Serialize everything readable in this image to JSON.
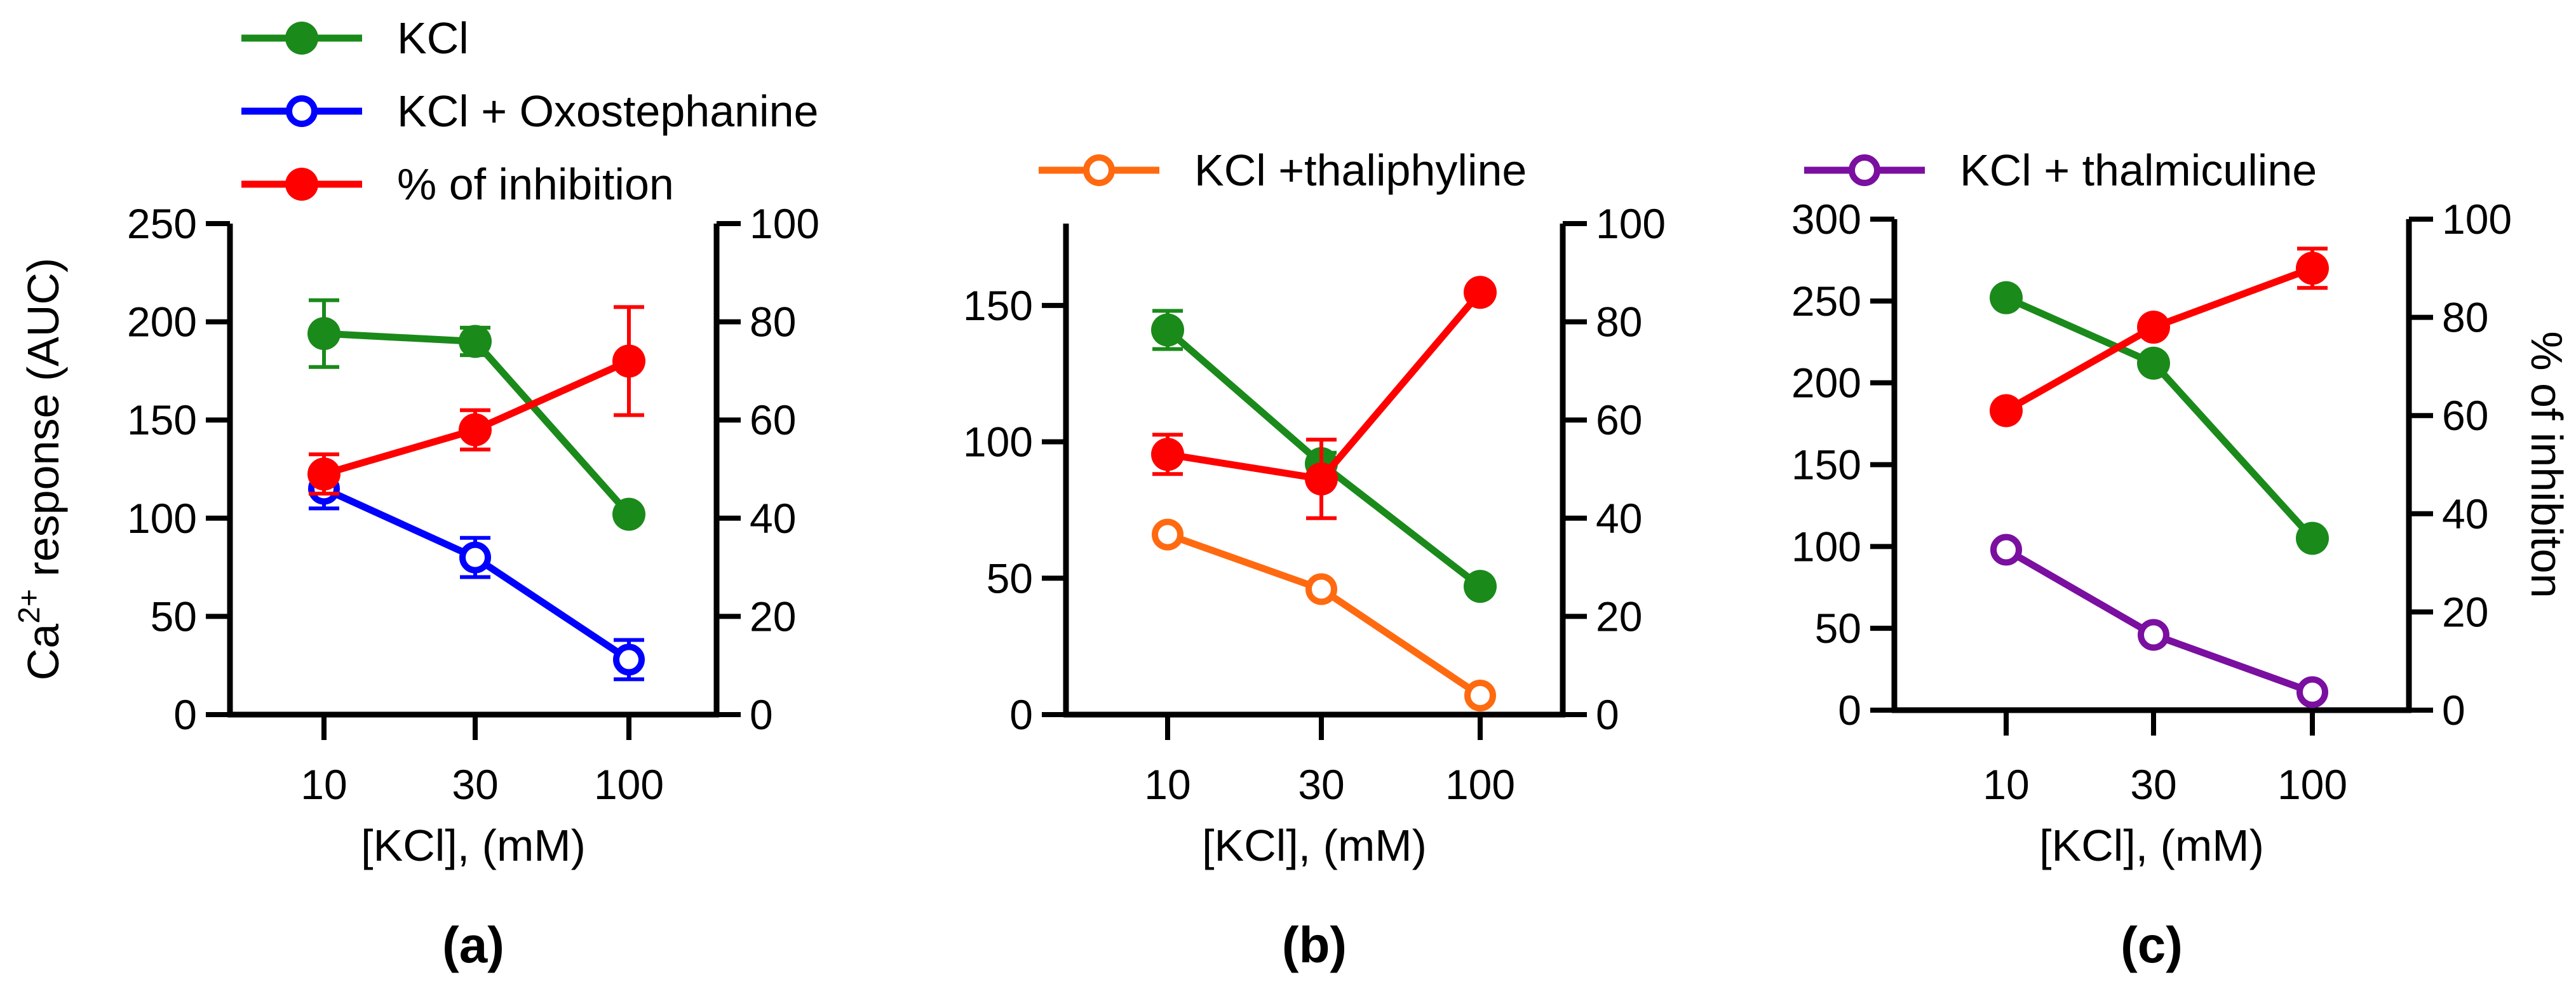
{
  "colors": {
    "green": "#1a8a1a",
    "blue": "#0000ff",
    "red": "#ff0000",
    "orange": "#ff6a10",
    "purple": "#7a0fa0"
  },
  "chart_data": [
    {
      "type": "line",
      "panel_label": "(a)",
      "categories": [
        "10",
        "30",
        "100"
      ],
      "xlabel": "[KCl], (mM)",
      "ylabel": {
        "base": "Ca",
        "sup": "2+",
        "rest": " response (AUC)"
      },
      "ylim": [
        0,
        250
      ],
      "yticks": [
        0,
        50,
        100,
        150,
        200,
        250
      ],
      "y2label": "",
      "y2lim": [
        0,
        100
      ],
      "y2ticks": [
        0,
        20,
        40,
        60,
        80,
        100
      ],
      "legend": [
        {
          "label": "KCl",
          "color": "green",
          "marker": "filled"
        },
        {
          "label": "KCl + Oxostephanine",
          "color": "blue",
          "marker": "open"
        },
        {
          "label": "% of inhibition",
          "color": "red",
          "marker": "filled"
        }
      ],
      "series": [
        {
          "name": "KCl",
          "axis": "left",
          "color": "green",
          "marker": "filled",
          "values": [
            194,
            190,
            102
          ],
          "errors": [
            17,
            7,
            0
          ]
        },
        {
          "name": "KCl + Oxostephanine",
          "axis": "left",
          "color": "blue",
          "marker": "open",
          "values": [
            115,
            80,
            28
          ],
          "errors": [
            10,
            10,
            10
          ]
        },
        {
          "name": "% of inhibition",
          "axis": "right",
          "color": "red",
          "marker": "filled",
          "values": [
            49,
            58,
            72
          ],
          "errors": [
            4,
            4,
            11
          ]
        }
      ]
    },
    {
      "type": "line",
      "panel_label": "(b)",
      "categories": [
        "10",
        "30",
        "100"
      ],
      "xlabel": "[KCl], (mM)",
      "ylabel": "",
      "ylim": [
        0,
        180
      ],
      "yticks": [
        0,
        50,
        100,
        150
      ],
      "y2label": "",
      "y2lim": [
        0,
        100
      ],
      "y2ticks": [
        0,
        20,
        40,
        60,
        80,
        100
      ],
      "legend": [
        {
          "label": "KCl +thaliphyline",
          "color": "orange",
          "marker": "open"
        }
      ],
      "series": [
        {
          "name": "KCl",
          "axis": "left",
          "color": "green",
          "marker": "filled",
          "values": [
            141,
            92,
            47
          ],
          "errors": [
            7,
            4,
            0
          ]
        },
        {
          "name": "KCl +thaliphyline",
          "axis": "left",
          "color": "orange",
          "marker": "open",
          "values": [
            66,
            46,
            7
          ],
          "errors": [
            0,
            0,
            0
          ]
        },
        {
          "name": "% of inhibition",
          "axis": "right",
          "color": "red",
          "marker": "filled",
          "values": [
            53,
            48,
            86
          ],
          "errors": [
            4,
            8,
            0
          ]
        }
      ]
    },
    {
      "type": "line",
      "panel_label": "(c)",
      "categories": [
        "10",
        "30",
        "100"
      ],
      "xlabel": "[KCl], (mM)",
      "ylabel": "",
      "ylim": [
        0,
        300
      ],
      "yticks": [
        0,
        50,
        100,
        150,
        200,
        250,
        300
      ],
      "y2label": "% of inhibiton",
      "y2lim": [
        0,
        100
      ],
      "y2ticks": [
        0,
        20,
        40,
        60,
        80,
        100
      ],
      "legend": [
        {
          "label": "KCl + thalmiculine",
          "color": "purple",
          "marker": "open"
        }
      ],
      "series": [
        {
          "name": "KCl",
          "axis": "left",
          "color": "green",
          "marker": "filled",
          "values": [
            252,
            212,
            105
          ],
          "errors": [
            0,
            0,
            0
          ]
        },
        {
          "name": "KCl + thalmiculine",
          "axis": "left",
          "color": "purple",
          "marker": "open",
          "values": [
            98,
            46,
            11
          ],
          "errors": [
            0,
            0,
            0
          ]
        },
        {
          "name": "% of inhibition",
          "axis": "right",
          "color": "red",
          "marker": "filled",
          "values": [
            61,
            78,
            90
          ],
          "errors": [
            0,
            0,
            4
          ]
        }
      ]
    }
  ]
}
